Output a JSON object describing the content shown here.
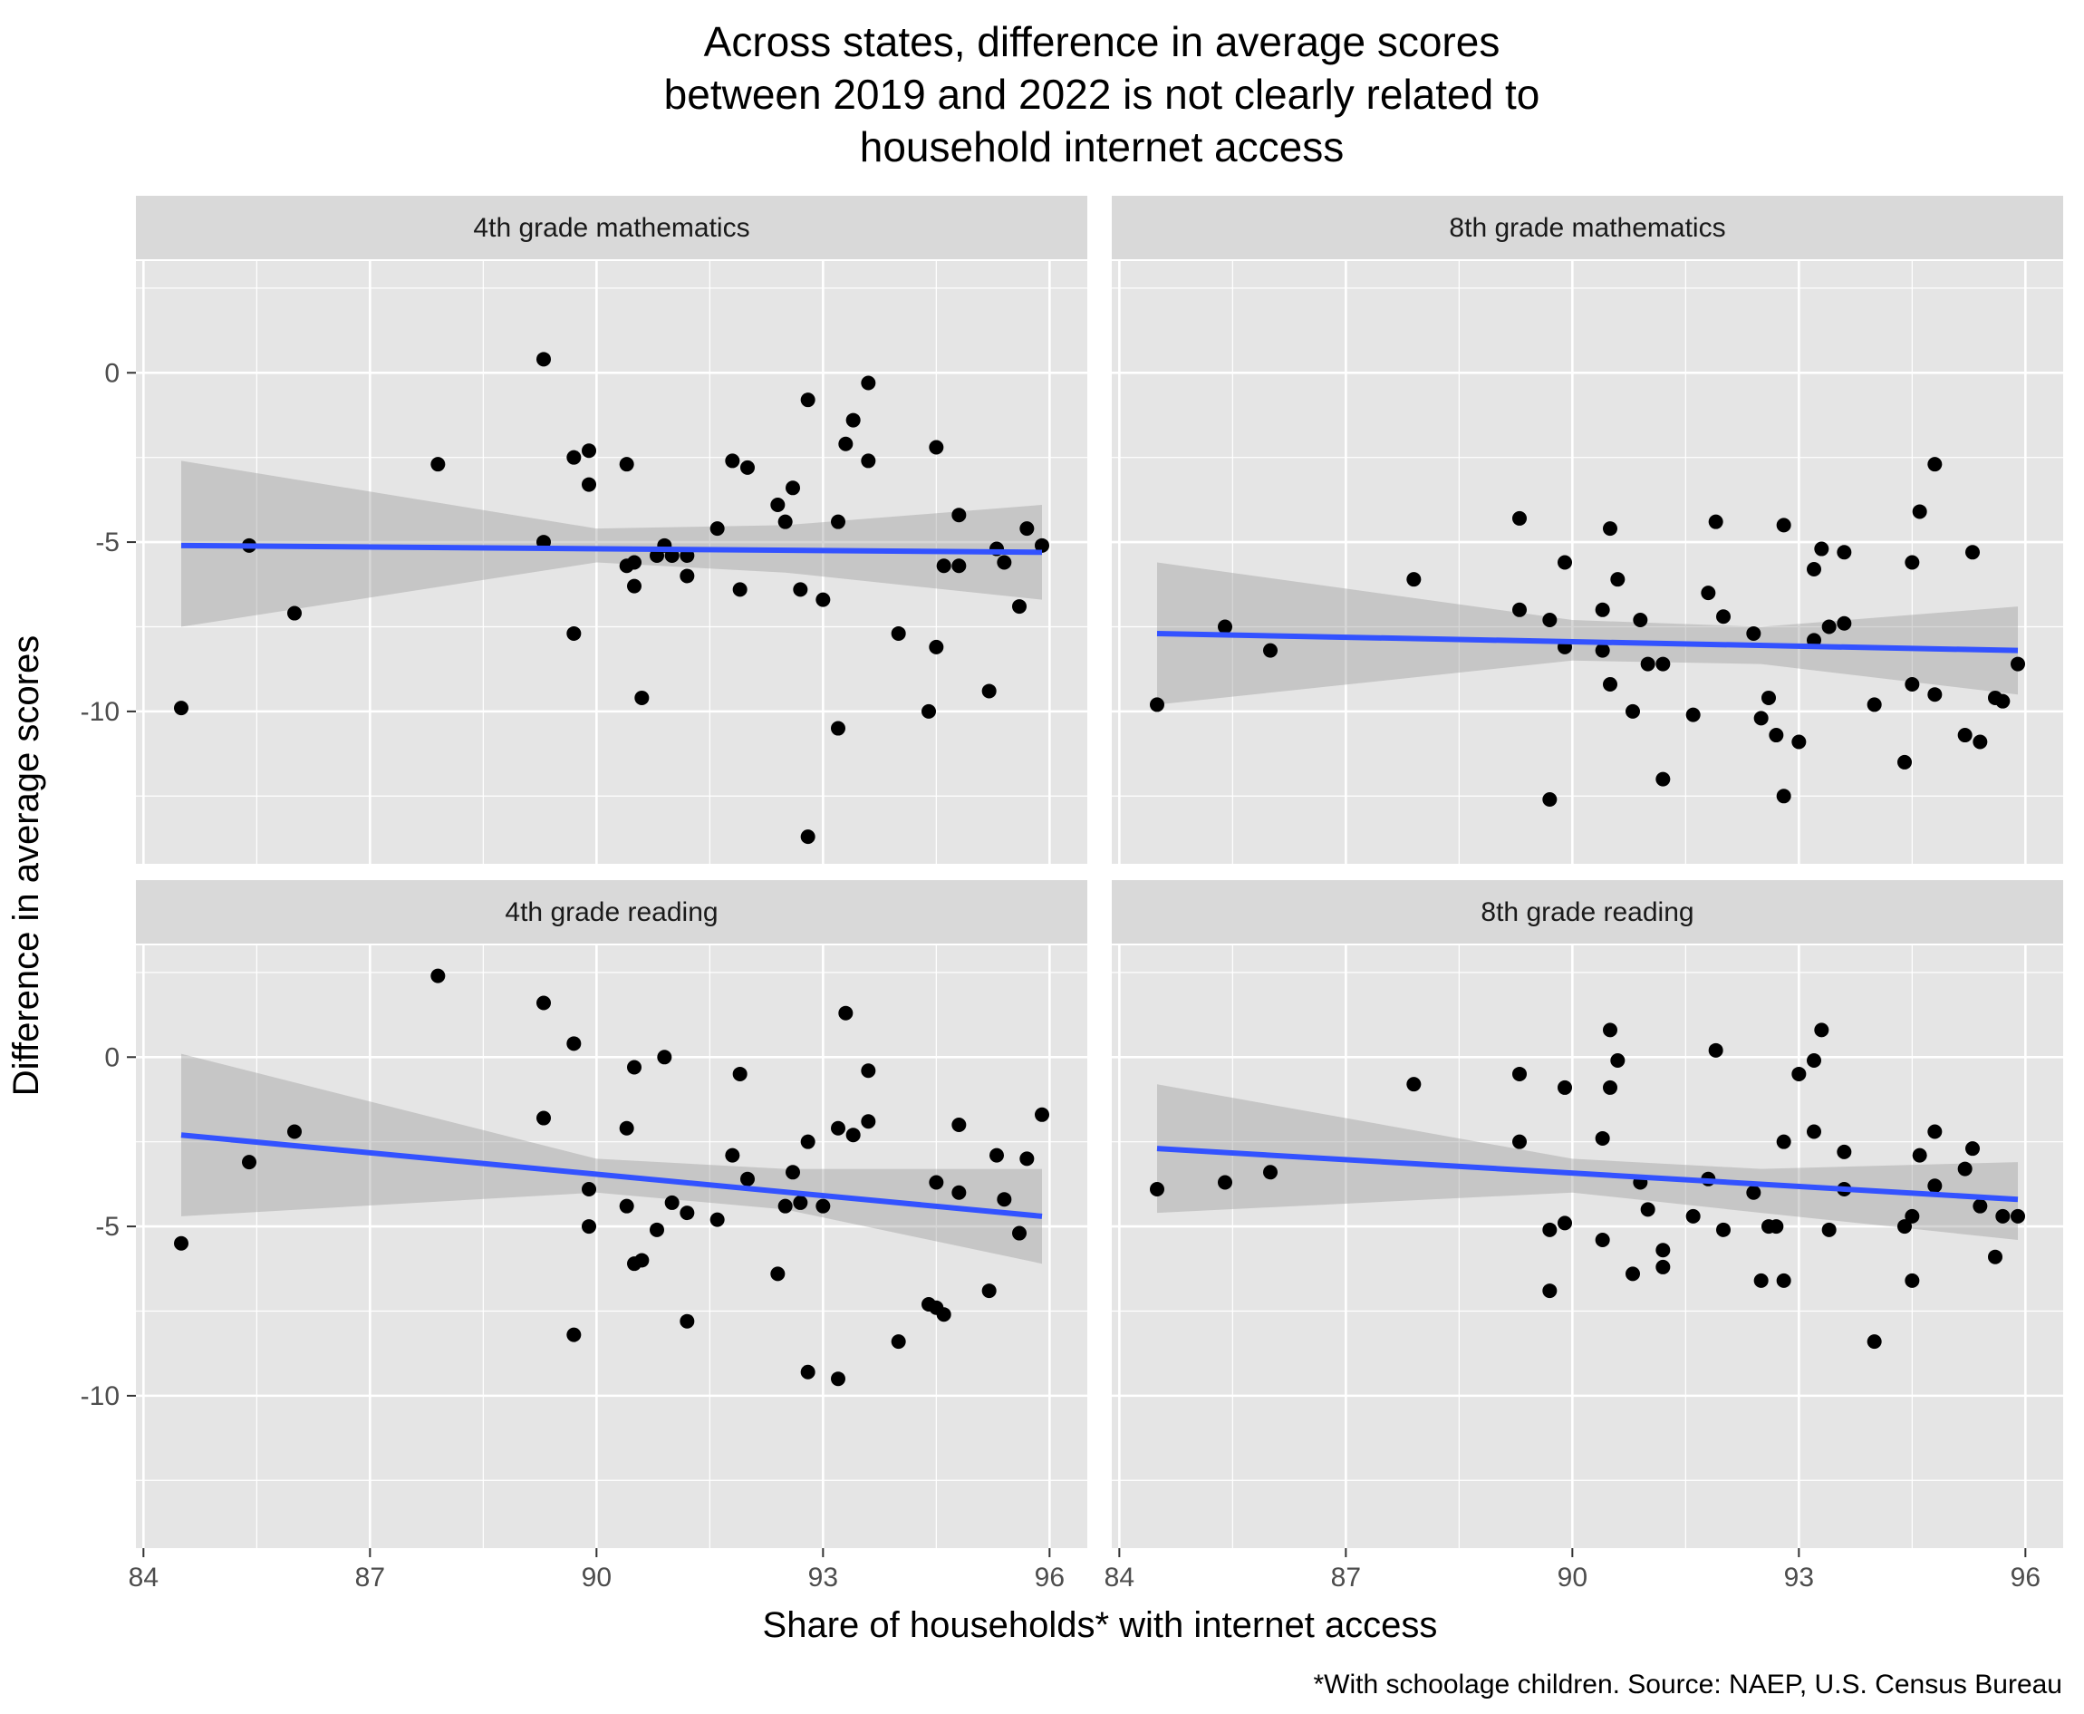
{
  "chart_data": {
    "type": "scatter",
    "title": "Across states, difference in average scores between 2019 and 2022 is not clearly related to household internet access",
    "title_lines": [
      "Across states, difference in average scores",
      "between 2019 and 2022 is not clearly related to",
      "household internet access"
    ],
    "xlabel": "Share of households* with internet access",
    "ylabel": "Difference in average scores",
    "caption": "*With schoolage children. Source: NAEP, U.S. Census Bureau",
    "xlim": [
      83.9,
      96.5
    ],
    "ylim": [
      -14.5,
      3.3
    ],
    "x_ticks": [
      84,
      87,
      90,
      93,
      96
    ],
    "y_ticks": [
      0,
      -5,
      -10
    ],
    "grid": true,
    "legend": "none",
    "colors": {
      "panel_bg": "#e5e5e5",
      "strip_bg": "#d9d9d9",
      "grid": "#ffffff",
      "point": "#000000",
      "trend_line": "#3352ff",
      "confidence_band": "#999999"
    },
    "panels": [
      {
        "name": "4th grade mathematics",
        "trend": {
          "x": [
            84.5,
            95.9
          ],
          "y": [
            -5.1,
            -5.3
          ]
        },
        "band": {
          "x": [
            84.5,
            90.0,
            92.5,
            95.9
          ],
          "upper": [
            -2.6,
            -4.6,
            -4.5,
            -3.9
          ],
          "lower": [
            -7.5,
            -5.6,
            -5.9,
            -6.7
          ]
        },
        "points": [
          [
            84.5,
            -9.9
          ],
          [
            85.4,
            -5.1
          ],
          [
            86.0,
            -7.1
          ],
          [
            87.9,
            -2.7
          ],
          [
            89.3,
            0.4
          ],
          [
            89.3,
            -5.0
          ],
          [
            89.7,
            -2.5
          ],
          [
            89.7,
            -7.7
          ],
          [
            89.9,
            -2.3
          ],
          [
            89.9,
            -3.3
          ],
          [
            90.4,
            -2.7
          ],
          [
            90.4,
            -5.7
          ],
          [
            90.5,
            -6.3
          ],
          [
            90.5,
            -5.6
          ],
          [
            90.6,
            -9.6
          ],
          [
            90.8,
            -5.4
          ],
          [
            90.9,
            -5.1
          ],
          [
            91.0,
            -5.4
          ],
          [
            91.2,
            -5.4
          ],
          [
            91.2,
            -6.0
          ],
          [
            91.6,
            -4.6
          ],
          [
            91.8,
            -2.6
          ],
          [
            91.9,
            -6.4
          ],
          [
            92.0,
            -2.8
          ],
          [
            92.4,
            -3.9
          ],
          [
            92.5,
            -4.4
          ],
          [
            92.6,
            -3.4
          ],
          [
            92.7,
            -6.4
          ],
          [
            92.8,
            -0.8
          ],
          [
            92.8,
            -13.7
          ],
          [
            93.0,
            -6.7
          ],
          [
            93.2,
            -4.4
          ],
          [
            93.2,
            -10.5
          ],
          [
            93.3,
            -2.1
          ],
          [
            93.4,
            -1.4
          ],
          [
            93.6,
            -0.3
          ],
          [
            93.6,
            -2.6
          ],
          [
            94.0,
            -7.7
          ],
          [
            94.4,
            -10.0
          ],
          [
            94.5,
            -2.2
          ],
          [
            94.5,
            -8.1
          ],
          [
            94.6,
            -5.7
          ],
          [
            94.8,
            -4.2
          ],
          [
            94.8,
            -5.7
          ],
          [
            95.2,
            -9.4
          ],
          [
            95.3,
            -5.2
          ],
          [
            95.4,
            -5.6
          ],
          [
            95.6,
            -6.9
          ],
          [
            95.7,
            -4.6
          ],
          [
            95.9,
            -5.1
          ]
        ]
      },
      {
        "name": "8th grade mathematics",
        "trend": {
          "x": [
            84.5,
            95.9
          ],
          "y": [
            -7.7,
            -8.2
          ]
        },
        "band": {
          "x": [
            84.5,
            90.0,
            92.5,
            95.9
          ],
          "upper": [
            -5.6,
            -7.3,
            -7.5,
            -6.9
          ],
          "lower": [
            -9.8,
            -8.5,
            -8.6,
            -9.5
          ]
        },
        "points": [
          [
            84.5,
            -9.8
          ],
          [
            85.4,
            -7.5
          ],
          [
            86.0,
            -8.2
          ],
          [
            87.9,
            -6.1
          ],
          [
            89.3,
            -4.3
          ],
          [
            89.3,
            -7.0
          ],
          [
            89.7,
            -7.3
          ],
          [
            89.7,
            -12.6
          ],
          [
            89.9,
            -5.6
          ],
          [
            89.9,
            -8.1
          ],
          [
            90.4,
            -7.0
          ],
          [
            90.4,
            -8.2
          ],
          [
            90.5,
            -9.2
          ],
          [
            90.5,
            -4.6
          ],
          [
            90.6,
            -6.1
          ],
          [
            90.8,
            -10.0
          ],
          [
            90.9,
            -7.3
          ],
          [
            91.0,
            -8.6
          ],
          [
            91.2,
            -8.6
          ],
          [
            91.2,
            -12.0
          ],
          [
            91.6,
            -10.1
          ],
          [
            91.8,
            -6.5
          ],
          [
            91.9,
            -4.4
          ],
          [
            92.0,
            -7.2
          ],
          [
            92.4,
            -7.7
          ],
          [
            92.5,
            -10.2
          ],
          [
            92.6,
            -9.6
          ],
          [
            92.7,
            -10.7
          ],
          [
            92.8,
            -4.5
          ],
          [
            92.8,
            -12.5
          ],
          [
            93.0,
            -10.9
          ],
          [
            93.2,
            -7.9
          ],
          [
            93.2,
            -5.8
          ],
          [
            93.3,
            -5.2
          ],
          [
            93.4,
            -7.5
          ],
          [
            93.6,
            -5.3
          ],
          [
            93.6,
            -7.4
          ],
          [
            94.0,
            -9.8
          ],
          [
            94.4,
            -11.5
          ],
          [
            94.5,
            -5.6
          ],
          [
            94.5,
            -9.2
          ],
          [
            94.6,
            -4.1
          ],
          [
            94.8,
            -2.7
          ],
          [
            94.8,
            -9.5
          ],
          [
            95.2,
            -10.7
          ],
          [
            95.3,
            -5.3
          ],
          [
            95.4,
            -10.9
          ],
          [
            95.6,
            -9.6
          ],
          [
            95.7,
            -9.7
          ],
          [
            95.9,
            -8.6
          ]
        ]
      },
      {
        "name": "4th grade reading",
        "trend": {
          "x": [
            84.5,
            95.9
          ],
          "y": [
            -2.3,
            -4.7
          ]
        },
        "band": {
          "x": [
            84.5,
            90.0,
            92.5,
            95.9
          ],
          "upper": [
            0.1,
            -3.0,
            -3.3,
            -3.3
          ],
          "lower": [
            -4.7,
            -4.0,
            -4.5,
            -6.1
          ]
        },
        "points": [
          [
            84.5,
            -5.5
          ],
          [
            85.4,
            -3.1
          ],
          [
            86.0,
            -2.2
          ],
          [
            87.9,
            2.4
          ],
          [
            89.3,
            1.6
          ],
          [
            89.3,
            -1.8
          ],
          [
            89.7,
            0.4
          ],
          [
            89.7,
            -8.2
          ],
          [
            89.9,
            -3.9
          ],
          [
            89.9,
            -5.0
          ],
          [
            90.4,
            -2.1
          ],
          [
            90.4,
            -4.4
          ],
          [
            90.5,
            -0.3
          ],
          [
            90.5,
            -6.1
          ],
          [
            90.6,
            -6.0
          ],
          [
            90.8,
            -5.1
          ],
          [
            90.9,
            0.0
          ],
          [
            91.0,
            -4.3
          ],
          [
            91.2,
            -4.6
          ],
          [
            91.2,
            -7.8
          ],
          [
            91.6,
            -4.8
          ],
          [
            91.8,
            -2.9
          ],
          [
            91.9,
            -0.5
          ],
          [
            92.0,
            -3.6
          ],
          [
            92.4,
            -6.4
          ],
          [
            92.5,
            -4.4
          ],
          [
            92.6,
            -3.4
          ],
          [
            92.7,
            -4.3
          ],
          [
            92.8,
            -2.5
          ],
          [
            92.8,
            -9.3
          ],
          [
            93.0,
            -4.4
          ],
          [
            93.2,
            -9.5
          ],
          [
            93.2,
            -2.1
          ],
          [
            93.3,
            1.3
          ],
          [
            93.4,
            -2.3
          ],
          [
            93.6,
            -0.4
          ],
          [
            93.6,
            -1.9
          ],
          [
            94.0,
            -8.4
          ],
          [
            94.4,
            -7.3
          ],
          [
            94.5,
            -3.7
          ],
          [
            94.5,
            -7.4
          ],
          [
            94.6,
            -7.6
          ],
          [
            94.8,
            -2.0
          ],
          [
            94.8,
            -4.0
          ],
          [
            95.2,
            -6.9
          ],
          [
            95.3,
            -2.9
          ],
          [
            95.4,
            -4.2
          ],
          [
            95.6,
            -5.2
          ],
          [
            95.7,
            -3.0
          ],
          [
            95.9,
            -1.7
          ]
        ]
      },
      {
        "name": "8th grade reading",
        "trend": {
          "x": [
            84.5,
            95.9
          ],
          "y": [
            -2.7,
            -4.2
          ]
        },
        "band": {
          "x": [
            84.5,
            90.0,
            92.5,
            95.9
          ],
          "upper": [
            -0.8,
            -3.0,
            -3.3,
            -3.1
          ],
          "lower": [
            -4.6,
            -4.0,
            -4.6,
            -5.4
          ]
        },
        "points": [
          [
            84.5,
            -3.9
          ],
          [
            85.4,
            -3.7
          ],
          [
            86.0,
            -3.4
          ],
          [
            87.9,
            -0.8
          ],
          [
            89.3,
            -0.5
          ],
          [
            89.3,
            -2.5
          ],
          [
            89.7,
            -5.1
          ],
          [
            89.7,
            -6.9
          ],
          [
            89.9,
            -0.9
          ],
          [
            89.9,
            -4.9
          ],
          [
            90.4,
            -2.4
          ],
          [
            90.4,
            -5.4
          ],
          [
            90.5,
            0.8
          ],
          [
            90.5,
            -0.9
          ],
          [
            90.6,
            -0.1
          ],
          [
            90.8,
            -6.4
          ],
          [
            90.9,
            -3.7
          ],
          [
            91.0,
            -4.5
          ],
          [
            91.2,
            -5.7
          ],
          [
            91.2,
            -6.2
          ],
          [
            91.6,
            -4.7
          ],
          [
            91.8,
            -3.6
          ],
          [
            91.9,
            0.2
          ],
          [
            92.0,
            -5.1
          ],
          [
            92.4,
            -4.0
          ],
          [
            92.5,
            -6.6
          ],
          [
            92.6,
            -5.0
          ],
          [
            92.7,
            -5.0
          ],
          [
            92.8,
            -2.5
          ],
          [
            92.8,
            -6.6
          ],
          [
            93.0,
            -0.5
          ],
          [
            93.2,
            -0.1
          ],
          [
            93.2,
            -2.2
          ],
          [
            93.3,
            0.8
          ],
          [
            93.4,
            -5.1
          ],
          [
            93.6,
            -2.8
          ],
          [
            93.6,
            -3.9
          ],
          [
            94.0,
            -8.4
          ],
          [
            94.4,
            -5.0
          ],
          [
            94.5,
            -4.7
          ],
          [
            94.5,
            -6.6
          ],
          [
            94.6,
            -2.9
          ],
          [
            94.8,
            -2.2
          ],
          [
            94.8,
            -3.8
          ],
          [
            95.2,
            -3.3
          ],
          [
            95.3,
            -2.7
          ],
          [
            95.4,
            -4.4
          ],
          [
            95.6,
            -5.9
          ],
          [
            95.7,
            -4.7
          ],
          [
            95.9,
            -4.7
          ]
        ]
      }
    ]
  }
}
